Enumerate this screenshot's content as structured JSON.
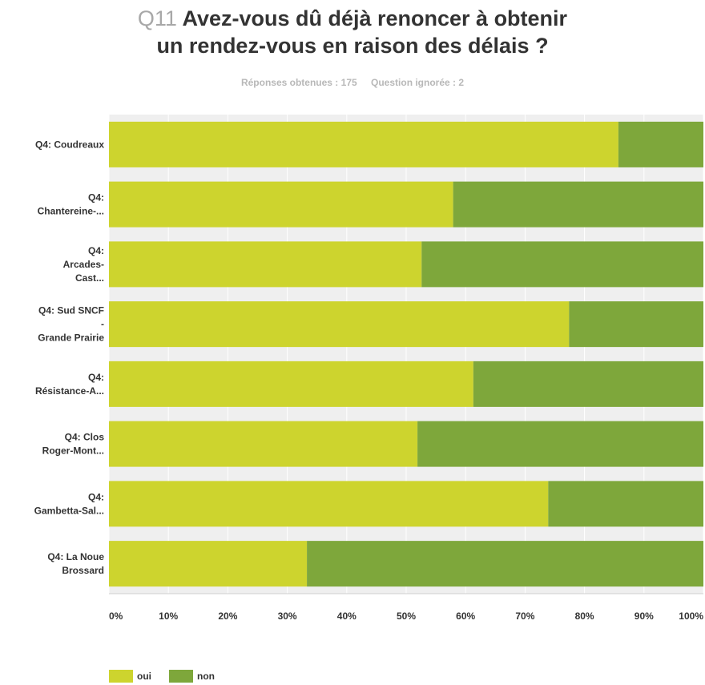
{
  "header": {
    "qnum": "Q11",
    "title_line1": "Avez-vous dû déjà renoncer à obtenir",
    "title_line2": "un rendez-vous en raison des délais ?",
    "answered": "Réponses obtenues : 175",
    "skipped": "Question ignorée : 2"
  },
  "chart_data": {
    "type": "bar",
    "orientation": "horizontal",
    "stacked": true,
    "categories": [
      [
        "Q4: Coudreaux"
      ],
      [
        "Q4:",
        "Chantereine-..."
      ],
      [
        "Q4:",
        "Arcades-",
        "Cast..."
      ],
      [
        "Q4: Sud SNCF",
        "-",
        "Grande Prairie"
      ],
      [
        "Q4:",
        "Résistance-A..."
      ],
      [
        "Q4: Clos",
        "Roger-Mont..."
      ],
      [
        "Q4:",
        "Gambetta-Sal..."
      ],
      [
        "Q4: La Noue",
        "Brossard"
      ]
    ],
    "series": [
      {
        "name": "oui",
        "color": "#cdd42e",
        "values": [
          85.7,
          57.9,
          52.6,
          77.4,
          61.3,
          51.9,
          73.9,
          33.3
        ]
      },
      {
        "name": "non",
        "color": "#7ea73b",
        "values": [
          14.3,
          42.1,
          47.4,
          22.6,
          38.7,
          48.1,
          26.1,
          66.7
        ]
      }
    ],
    "xlim": [
      0,
      100
    ],
    "x_ticks": [
      "0%",
      "10%",
      "20%",
      "30%",
      "40%",
      "50%",
      "60%",
      "70%",
      "80%",
      "90%",
      "100%"
    ],
    "grid": true,
    "legend_position": "bottom-left"
  }
}
